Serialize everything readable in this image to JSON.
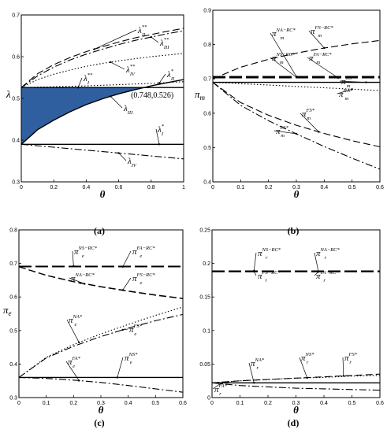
{
  "chart_data": [
    {
      "id": "a",
      "caption": "(a)",
      "type": "line",
      "xlabel": "θ",
      "ylabel": "λ",
      "xlim": [
        0,
        1
      ],
      "ylim": [
        0.3,
        0.7
      ],
      "xticks": [
        0,
        0.2,
        0.4,
        0.6,
        0.8,
        1
      ],
      "yticks": [
        0.3,
        0.4,
        0.5,
        0.6,
        0.7
      ],
      "xtick_labels": [
        "0",
        "0.2",
        "0.4",
        "0.6",
        "0.8",
        "1"
      ],
      "ytick_labels": [
        "0.3",
        "0.4",
        "0.5",
        "0.6",
        "0.7"
      ],
      "shaded_region": {
        "color": "#2f5f9e",
        "between": [
          "λ_III",
          "λ_I**"
        ],
        "x": [
          0,
          0.1,
          0.2,
          0.3,
          0.4,
          0.5,
          0.6,
          0.7,
          0.748
        ],
        "lower": [
          0.39,
          0.425,
          0.448,
          0.468,
          0.485,
          0.499,
          0.511,
          0.521,
          0.526
        ],
        "upper": [
          0.526,
          0.526,
          0.526,
          0.526,
          0.526,
          0.526,
          0.526,
          0.526,
          0.526
        ]
      },
      "annotation": {
        "text": "(0.748,0.526)",
        "x": 0.748,
        "y": 0.526
      },
      "series": [
        {
          "key": "l_II_ss",
          "style": "dashed",
          "label_main": "λ",
          "label_sup": "**",
          "label_sub": "II",
          "x": [
            0,
            0.1,
            0.2,
            0.3,
            0.4,
            0.5,
            0.6,
            0.7,
            0.8,
            0.9,
            1.0
          ],
          "values": [
            0.526,
            0.559,
            0.581,
            0.598,
            0.612,
            0.624,
            0.635,
            0.645,
            0.653,
            0.661,
            0.668
          ]
        },
        {
          "key": "l_III_ss",
          "style": "dashdot",
          "label_main": "λ",
          "label_sup": "**",
          "label_sub": "III",
          "x": [
            0,
            0.1,
            0.2,
            0.3,
            0.4,
            0.5,
            0.6,
            0.7,
            0.8,
            0.9,
            1.0
          ],
          "values": [
            0.526,
            0.554,
            0.575,
            0.592,
            0.606,
            0.618,
            0.629,
            0.639,
            0.647,
            0.655,
            0.662
          ]
        },
        {
          "key": "l_IV_ss",
          "style": "dotted",
          "label_main": "λ",
          "label_sup": "**",
          "label_sub": "IV",
          "x": [
            0,
            0.1,
            0.2,
            0.3,
            0.4,
            0.5,
            0.6,
            0.7,
            0.8,
            0.9,
            1.0
          ],
          "values": [
            0.526,
            0.545,
            0.558,
            0.568,
            0.577,
            0.584,
            0.59,
            0.595,
            0.6,
            0.604,
            0.608
          ]
        },
        {
          "key": "l_II_s",
          "style": "dotted",
          "label_main": "λ",
          "label_sup": "*",
          "label_sub": "II",
          "x": [
            0,
            0.2,
            0.4,
            0.6,
            0.8,
            1.0
          ],
          "values": [
            0.526,
            0.528,
            0.53,
            0.533,
            0.536,
            0.54
          ]
        },
        {
          "key": "l_I_ss",
          "style": "solid",
          "label_main": "λ",
          "label_sup": "**",
          "label_sub": "I",
          "x": [
            0,
            1.0
          ],
          "values": [
            0.526,
            0.526
          ]
        },
        {
          "key": "l_III",
          "style": "solid",
          "label_main": "λ",
          "label_sup": "",
          "label_sub": "III",
          "x": [
            0,
            0.1,
            0.2,
            0.3,
            0.4,
            0.5,
            0.6,
            0.7,
            0.8,
            0.9,
            1.0
          ],
          "values": [
            0.39,
            0.425,
            0.448,
            0.468,
            0.485,
            0.499,
            0.511,
            0.521,
            0.53,
            0.538,
            0.545
          ]
        },
        {
          "key": "l_I_s",
          "style": "solid",
          "label_main": "λ",
          "label_sup": "*",
          "label_sub": "I",
          "x": [
            0,
            1.0
          ],
          "values": [
            0.39,
            0.39
          ]
        },
        {
          "key": "l_IV",
          "style": "dashdot",
          "label_main": "λ",
          "label_sup": "",
          "label_sub": "IV",
          "x": [
            0,
            0.2,
            0.4,
            0.6,
            0.8,
            1.0
          ],
          "values": [
            0.39,
            0.383,
            0.376,
            0.369,
            0.362,
            0.355
          ]
        }
      ]
    },
    {
      "id": "b",
      "caption": "(b)",
      "type": "line",
      "xlabel": "θ",
      "ylabel": "π_m",
      "xlim": [
        0,
        0.6
      ],
      "ylim": [
        0.4,
        0.9
      ],
      "xticks": [
        0,
        0.1,
        0.2,
        0.3,
        0.4,
        0.5,
        0.6
      ],
      "yticks": [
        0.4,
        0.5,
        0.6,
        0.7,
        0.8,
        0.9
      ],
      "xtick_labels": [
        "0",
        "0.1",
        "0.2",
        "0.3",
        "0.4",
        "0.5",
        "0.6"
      ],
      "ytick_labels": [
        "0.4",
        "0.5",
        "0.6",
        "0.7",
        "0.8",
        "0.9"
      ],
      "series": [
        {
          "key": "fs_rc",
          "style": "dashed",
          "label_main": "π",
          "label_sup": "FS−RC*",
          "label_sub": "m",
          "x": [
            0,
            0.1,
            0.2,
            0.3,
            0.4,
            0.5,
            0.6
          ],
          "values": [
            0.7,
            0.734,
            0.757,
            0.775,
            0.79,
            0.802,
            0.812
          ]
        },
        {
          "key": "na_rc",
          "style": "longdash",
          "label_main": "π",
          "label_sup": "NA−RC*",
          "label_sub": "m",
          "x": [
            0,
            0.6
          ],
          "values": [
            0.707,
            0.707
          ]
        },
        {
          "key": "ns_rc",
          "style": "longdash",
          "label_main": "π",
          "label_sup": "NS−RC*",
          "label_sub": "m",
          "x": [
            0,
            0.6
          ],
          "values": [
            0.705,
            0.705
          ]
        },
        {
          "key": "fa_rc",
          "style": "longdash",
          "label_main": "π",
          "label_sup": "FA−RC*",
          "label_sub": "m",
          "x": [
            0,
            0.6
          ],
          "values": [
            0.703,
            0.703
          ]
        },
        {
          "key": "ns",
          "style": "solid",
          "label_main": "π",
          "label_sup": "NS*",
          "label_sub": "m",
          "x": [
            0,
            0.6
          ],
          "values": [
            0.69,
            0.69
          ]
        },
        {
          "key": "na",
          "style": "dotted",
          "label_main": "π",
          "label_sup": "NA*",
          "label_sub": "m",
          "x": [
            0,
            0.1,
            0.2,
            0.3,
            0.4,
            0.5,
            0.6
          ],
          "values": [
            0.69,
            0.686,
            0.682,
            0.678,
            0.674,
            0.67,
            0.666
          ]
        },
        {
          "key": "fs",
          "style": "dashed",
          "label_main": "π",
          "label_sup": "FS*",
          "label_sub": "m",
          "x": [
            0,
            0.1,
            0.2,
            0.3,
            0.4,
            0.5,
            0.6
          ],
          "values": [
            0.69,
            0.631,
            0.594,
            0.565,
            0.541,
            0.52,
            0.502
          ]
        },
        {
          "key": "fa",
          "style": "dashdot",
          "label_main": "π",
          "label_sup": "FA*",
          "label_sub": "m",
          "x": [
            0,
            0.1,
            0.2,
            0.3,
            0.4,
            0.5,
            0.6
          ],
          "values": [
            0.69,
            0.623,
            0.578,
            0.54,
            0.503,
            0.469,
            0.437
          ]
        }
      ]
    },
    {
      "id": "c",
      "caption": "(c)",
      "type": "line",
      "xlabel": "θ",
      "ylabel": "π_e",
      "xlim": [
        0,
        0.6
      ],
      "ylim": [
        0.3,
        0.8
      ],
      "xticks": [
        0,
        0.1,
        0.2,
        0.3,
        0.4,
        0.5,
        0.6
      ],
      "yticks": [
        0.3,
        0.4,
        0.5,
        0.6,
        0.7,
        0.8
      ],
      "xtick_labels": [
        "0",
        "0.1",
        "0.2",
        "0.3",
        "0.4",
        "0.5",
        "0.6"
      ],
      "ytick_labels": [
        "0.3",
        "0.4",
        "0.5",
        "0.6",
        "0.7",
        "0.8"
      ],
      "series": [
        {
          "key": "ns_rc",
          "style": "longdash",
          "label_main": "π",
          "label_sup": "NS−RC*",
          "label_sub": "e",
          "x": [
            0,
            0.6
          ],
          "values": [
            0.692,
            0.692
          ]
        },
        {
          "key": "fa_rc",
          "style": "longdash",
          "label_main": "π",
          "label_sup": "FA−RC*",
          "label_sub": "e",
          "x": [
            0,
            0.6
          ],
          "values": [
            0.69,
            0.69
          ]
        },
        {
          "key": "na_rc",
          "style": "dashed",
          "label_main": "π",
          "label_sup": "NA−RC*",
          "label_sub": "e",
          "x": [
            0,
            0.1,
            0.2,
            0.3,
            0.4,
            0.5,
            0.6
          ],
          "values": [
            0.69,
            0.664,
            0.645,
            0.63,
            0.617,
            0.605,
            0.595
          ]
        },
        {
          "key": "fs_rc",
          "style": "dashed",
          "label_main": "π",
          "label_sup": "FS−RC*",
          "label_sub": "e",
          "x": [
            0,
            0.1,
            0.2,
            0.3,
            0.4,
            0.5,
            0.6
          ],
          "values": [
            0.69,
            0.665,
            0.646,
            0.631,
            0.618,
            0.606,
            0.596
          ]
        },
        {
          "key": "na",
          "style": "dotted",
          "label_main": "π",
          "label_sup": "NA*",
          "label_sub": "e",
          "x": [
            0,
            0.1,
            0.2,
            0.3,
            0.4,
            0.5,
            0.6
          ],
          "values": [
            0.36,
            0.42,
            0.458,
            0.49,
            0.518,
            0.545,
            0.57
          ]
        },
        {
          "key": "fs",
          "style": "dashdot",
          "label_main": "π",
          "label_sup": "FS*",
          "label_sub": "e",
          "x": [
            0,
            0.1,
            0.2,
            0.3,
            0.4,
            0.5,
            0.6
          ],
          "values": [
            0.36,
            0.418,
            0.453,
            0.482,
            0.507,
            0.529,
            0.548
          ]
        },
        {
          "key": "ns",
          "style": "solid",
          "label_main": "π",
          "label_sup": "NS*",
          "label_sub": "e",
          "x": [
            0,
            0.6
          ],
          "values": [
            0.36,
            0.36
          ]
        },
        {
          "key": "fa",
          "style": "dashdot",
          "label_main": "π",
          "label_sup": "FA*",
          "label_sub": "e",
          "x": [
            0,
            0.1,
            0.2,
            0.3,
            0.4,
            0.5,
            0.6
          ],
          "values": [
            0.36,
            0.357,
            0.352,
            0.345,
            0.336,
            0.326,
            0.316
          ]
        }
      ]
    },
    {
      "id": "d",
      "caption": "(d)",
      "type": "line",
      "xlabel": "θ",
      "ylabel": "",
      "xlim": [
        0,
        0.6
      ],
      "ylim": [
        0,
        0.25
      ],
      "xticks": [
        0,
        0.1,
        0.2,
        0.3,
        0.4,
        0.5,
        0.6
      ],
      "yticks": [
        0,
        0.05,
        0.1,
        0.15,
        0.2,
        0.25
      ],
      "xtick_labels": [
        "0",
        "0.1",
        "0.2",
        "0.3",
        "0.4",
        "0.5",
        "0.6"
      ],
      "ytick_labels": [
        "0",
        "0.05",
        "0.1",
        "0.15",
        "0.2",
        "0.25"
      ],
      "series": [
        {
          "key": "ns_rc",
          "style": "longdash",
          "label_main": "π",
          "label_sup": "NS−RC*",
          "label_sub": "r",
          "x": [
            0,
            0.6
          ],
          "values": [
            0.189,
            0.189
          ]
        },
        {
          "key": "na_rc",
          "style": "longdash",
          "label_main": "π",
          "label_sup": "NA−RC*",
          "label_sub": "r",
          "x": [
            0,
            0.6
          ],
          "values": [
            0.1885,
            0.1885
          ]
        },
        {
          "key": "fs_rc",
          "style": "longdash",
          "label_main": "π",
          "label_sup": "FS−RC*",
          "label_sub": "r",
          "x": [
            0,
            0.6
          ],
          "values": [
            0.188,
            0.188
          ]
        },
        {
          "key": "fa_rc",
          "style": "longdash",
          "label_main": "π",
          "label_sup": "FA−RC*",
          "label_sub": "r",
          "x": [
            0,
            0.6
          ],
          "values": [
            0.1875,
            0.1875
          ]
        },
        {
          "key": "fs",
          "style": "dashed",
          "label_main": "π",
          "label_sup": "FS*",
          "label_sub": "r",
          "x": [
            0,
            0.1,
            0.2,
            0.3,
            0.4,
            0.5,
            0.6
          ],
          "values": [
            0.022,
            0.025,
            0.027,
            0.029,
            0.031,
            0.033,
            0.035
          ]
        },
        {
          "key": "ns",
          "style": "dotted",
          "label_main": "π",
          "label_sup": "NS*",
          "label_sub": "r",
          "x": [
            0,
            0.1,
            0.2,
            0.3,
            0.4,
            0.5,
            0.6
          ],
          "values": [
            0.022,
            0.025,
            0.027,
            0.029,
            0.03,
            0.032,
            0.033
          ]
        },
        {
          "key": "na",
          "style": "solid",
          "label_main": "π",
          "label_sup": "NA*",
          "label_sub": "r",
          "x": [
            0,
            0.6
          ],
          "values": [
            0.022,
            0.022
          ]
        },
        {
          "key": "fa",
          "style": "dashdot",
          "label_main": "π",
          "label_sup": "FA*",
          "label_sub": "r",
          "x": [
            0,
            0.1,
            0.2,
            0.3,
            0.4,
            0.5,
            0.6
          ],
          "values": [
            0.022,
            0.018,
            0.016,
            0.014,
            0.013,
            0.012,
            0.011
          ]
        }
      ]
    }
  ]
}
